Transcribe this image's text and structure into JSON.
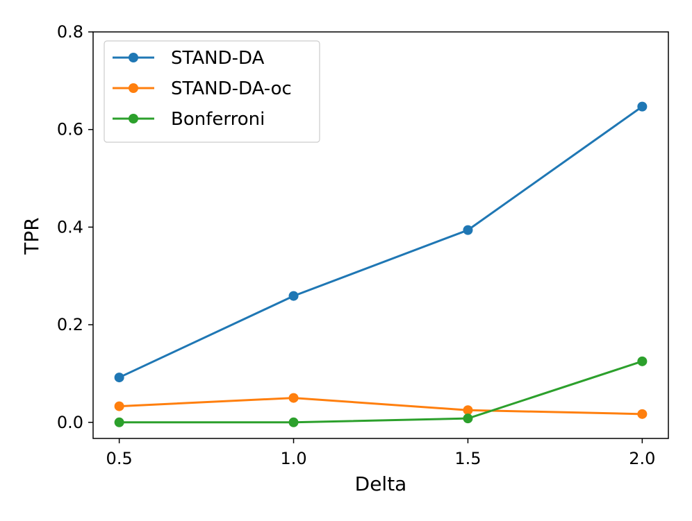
{
  "chart_data": {
    "type": "line",
    "title": "",
    "xlabel": "Delta",
    "ylabel": "TPR",
    "x": [
      0.5,
      1.0,
      1.5,
      2.0
    ],
    "x_tick_labels": [
      "0.5",
      "1.0",
      "1.5",
      "2.0"
    ],
    "y_ticks": [
      0.0,
      0.2,
      0.4,
      0.6,
      0.8
    ],
    "y_tick_labels": [
      "0.0",
      "0.2",
      "0.4",
      "0.6",
      "0.8"
    ],
    "xlim": [
      0.425,
      2.075
    ],
    "ylim": [
      -0.033,
      0.8
    ],
    "grid": false,
    "legend_position": "top-left",
    "series": [
      {
        "name": "STAND-DA",
        "color": "#1f77b4",
        "values": [
          0.092,
          0.259,
          0.394,
          0.647
        ]
      },
      {
        "name": "STAND-DA-oc",
        "color": "#ff7f0e",
        "values": [
          0.033,
          0.05,
          0.025,
          0.017
        ]
      },
      {
        "name": "Bonferroni",
        "color": "#2ca02c",
        "values": [
          0.0,
          0.0,
          0.008,
          0.125
        ]
      }
    ]
  }
}
